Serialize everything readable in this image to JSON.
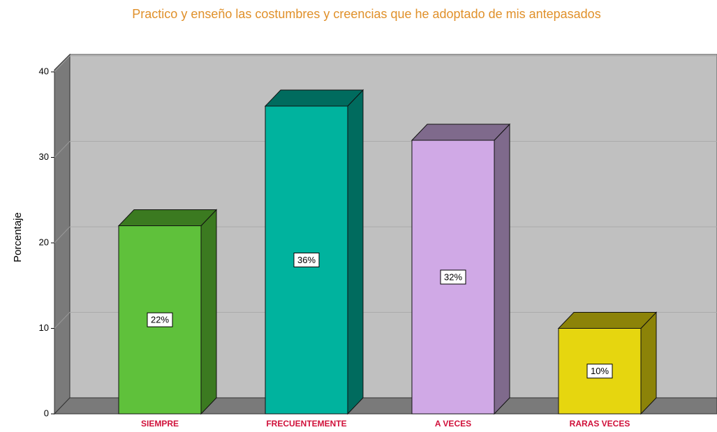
{
  "chart_data": {
    "type": "bar3d",
    "title": "Practico y enseño las costumbres y creencias que he adoptado de mis antepasados",
    "y_label": "Porcentaje",
    "categories": [
      "SIEMPRE",
      "FRECUENTEMENTE",
      "A VECES",
      "RARAS VECES"
    ],
    "values": [
      22,
      36,
      32,
      10
    ],
    "value_labels": [
      "22%",
      "36%",
      "32%",
      "10%"
    ],
    "colors": [
      "#5fc13b",
      "#00b39e",
      "#d0a9e6",
      "#e6d60f"
    ],
    "side_colors": [
      "#3b7a20",
      "#006b5e",
      "#7f6a8c",
      "#8c8308"
    ],
    "ylim": [
      0,
      40
    ],
    "yticks": [
      0,
      10,
      20,
      30,
      40
    ],
    "grid": true
  }
}
